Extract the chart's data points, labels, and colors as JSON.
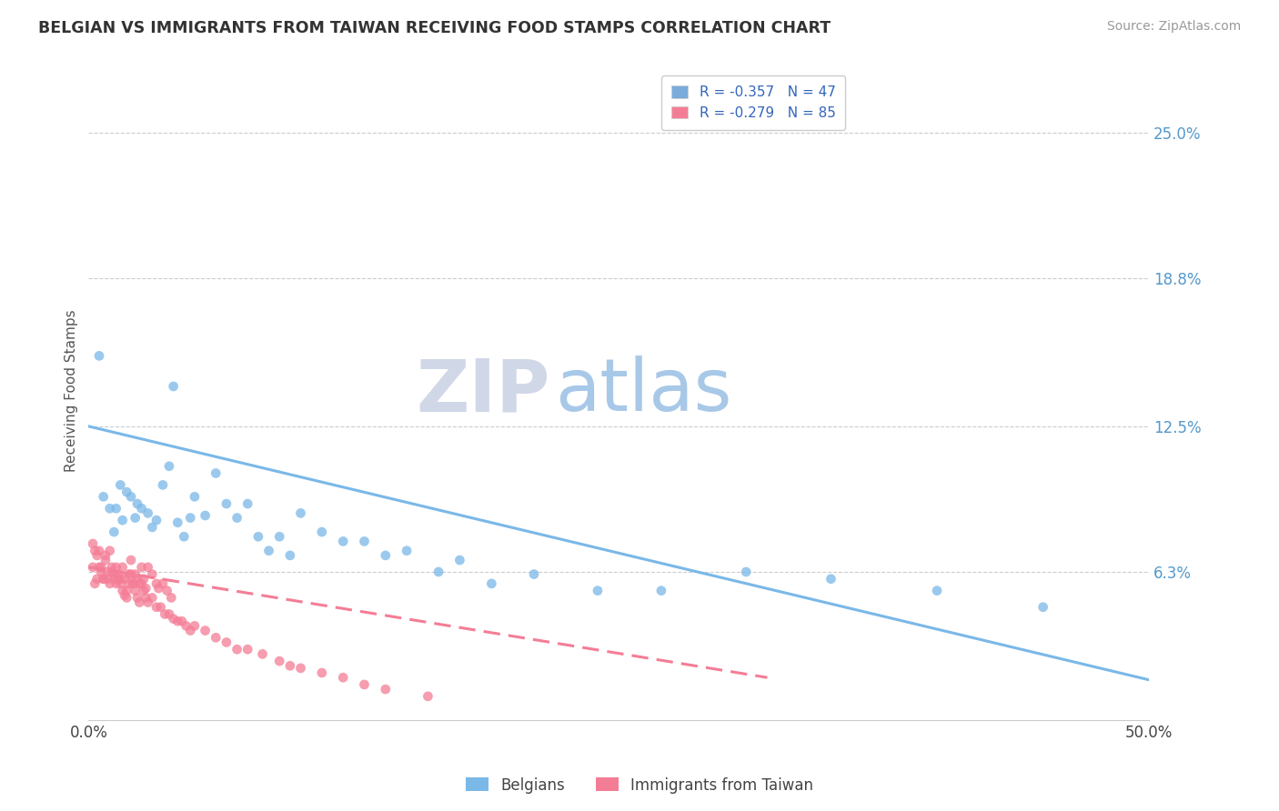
{
  "title": "BELGIAN VS IMMIGRANTS FROM TAIWAN RECEIVING FOOD STAMPS CORRELATION CHART",
  "source": "Source: ZipAtlas.com",
  "ylabel": "Receiving Food Stamps",
  "xlim": [
    0.0,
    0.5
  ],
  "ylim": [
    0.0,
    0.28
  ],
  "ytick_labels_right": [
    "25.0%",
    "18.8%",
    "12.5%",
    "6.3%"
  ],
  "ytick_positions_right": [
    0.25,
    0.188,
    0.125,
    0.063
  ],
  "legend_entries": [
    {
      "label": "R = -0.357   N = 47",
      "color": "#7aabdb"
    },
    {
      "label": "R = -0.279   N = 85",
      "color": "#f47d96"
    }
  ],
  "legend_labels_bottom": [
    "Belgians",
    "Immigrants from Taiwan"
  ],
  "belgian_color": "#7ab8e8",
  "taiwan_color": "#f47d96",
  "watermark_zip": "ZIP",
  "watermark_atlas": "atlas",
  "belgian_trend_start_x": 0.0,
  "belgian_trend_start_y": 0.125,
  "belgian_trend_end_x": 0.5,
  "belgian_trend_end_y": 0.017,
  "taiwan_trend_start_x": 0.0,
  "taiwan_trend_start_y": 0.065,
  "taiwan_trend_end_x": 0.32,
  "taiwan_trend_end_y": 0.018,
  "belgian_scatter_x": [
    0.005,
    0.007,
    0.01,
    0.012,
    0.013,
    0.015,
    0.016,
    0.018,
    0.02,
    0.022,
    0.023,
    0.025,
    0.028,
    0.03,
    0.032,
    0.035,
    0.038,
    0.04,
    0.042,
    0.045,
    0.048,
    0.05,
    0.055,
    0.06,
    0.065,
    0.07,
    0.075,
    0.08,
    0.085,
    0.09,
    0.095,
    0.1,
    0.11,
    0.12,
    0.13,
    0.14,
    0.15,
    0.165,
    0.175,
    0.19,
    0.21,
    0.24,
    0.27,
    0.31,
    0.35,
    0.4,
    0.45
  ],
  "belgian_scatter_y": [
    0.155,
    0.095,
    0.09,
    0.08,
    0.09,
    0.1,
    0.085,
    0.097,
    0.095,
    0.086,
    0.092,
    0.09,
    0.088,
    0.082,
    0.085,
    0.1,
    0.108,
    0.142,
    0.084,
    0.078,
    0.086,
    0.095,
    0.087,
    0.105,
    0.092,
    0.086,
    0.092,
    0.078,
    0.072,
    0.078,
    0.07,
    0.088,
    0.08,
    0.076,
    0.076,
    0.07,
    0.072,
    0.063,
    0.068,
    0.058,
    0.062,
    0.055,
    0.055,
    0.063,
    0.06,
    0.055,
    0.048
  ],
  "taiwan_scatter_x": [
    0.002,
    0.003,
    0.004,
    0.005,
    0.006,
    0.007,
    0.008,
    0.009,
    0.01,
    0.011,
    0.012,
    0.013,
    0.014,
    0.015,
    0.016,
    0.017,
    0.018,
    0.019,
    0.02,
    0.021,
    0.022,
    0.023,
    0.024,
    0.025,
    0.026,
    0.027,
    0.028,
    0.03,
    0.032,
    0.033,
    0.035,
    0.037,
    0.039,
    0.002,
    0.003,
    0.004,
    0.005,
    0.006,
    0.007,
    0.008,
    0.009,
    0.01,
    0.011,
    0.012,
    0.013,
    0.014,
    0.015,
    0.016,
    0.017,
    0.018,
    0.019,
    0.02,
    0.021,
    0.022,
    0.023,
    0.024,
    0.025,
    0.026,
    0.027,
    0.028,
    0.03,
    0.032,
    0.034,
    0.036,
    0.038,
    0.04,
    0.042,
    0.044,
    0.046,
    0.048,
    0.05,
    0.055,
    0.06,
    0.065,
    0.07,
    0.075,
    0.082,
    0.09,
    0.095,
    0.1,
    0.11,
    0.12,
    0.13,
    0.14,
    0.16
  ],
  "taiwan_scatter_y": [
    0.065,
    0.058,
    0.06,
    0.072,
    0.065,
    0.06,
    0.068,
    0.063,
    0.058,
    0.063,
    0.062,
    0.058,
    0.06,
    0.06,
    0.065,
    0.06,
    0.055,
    0.062,
    0.068,
    0.058,
    0.062,
    0.06,
    0.058,
    0.065,
    0.06,
    0.056,
    0.065,
    0.062,
    0.058,
    0.056,
    0.058,
    0.055,
    0.052,
    0.075,
    0.072,
    0.07,
    0.065,
    0.063,
    0.06,
    0.07,
    0.06,
    0.072,
    0.065,
    0.06,
    0.065,
    0.062,
    0.058,
    0.055,
    0.053,
    0.052,
    0.058,
    0.062,
    0.058,
    0.055,
    0.052,
    0.05,
    0.058,
    0.055,
    0.052,
    0.05,
    0.052,
    0.048,
    0.048,
    0.045,
    0.045,
    0.043,
    0.042,
    0.042,
    0.04,
    0.038,
    0.04,
    0.038,
    0.035,
    0.033,
    0.03,
    0.03,
    0.028,
    0.025,
    0.023,
    0.022,
    0.02,
    0.018,
    0.015,
    0.013,
    0.01
  ]
}
